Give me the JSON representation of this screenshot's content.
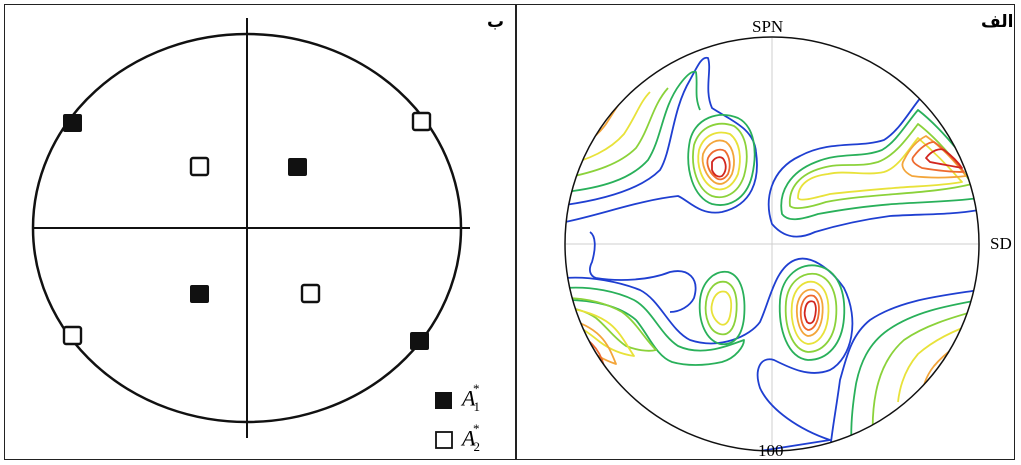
{
  "panel_b": {
    "label": "ب",
    "legend": [
      {
        "symbol": "filled-square",
        "main": "A",
        "sub": "1",
        "sup": "*"
      },
      {
        "symbol": "open-square",
        "main": "A",
        "sub": "2",
        "sup": "*"
      }
    ]
  },
  "panel_a": {
    "label": "الف",
    "top_axis_label": "SPN",
    "right_axis_label": "SD",
    "bottom_axis_label": "100"
  },
  "colors": {
    "line": "#111111",
    "contour_levels": [
      "#1f3fd1",
      "#29b05a",
      "#8bd23a",
      "#e8e23a",
      "#f3a53a",
      "#ee6a2f",
      "#d2261f"
    ],
    "grid": "#cfcfcf"
  }
}
